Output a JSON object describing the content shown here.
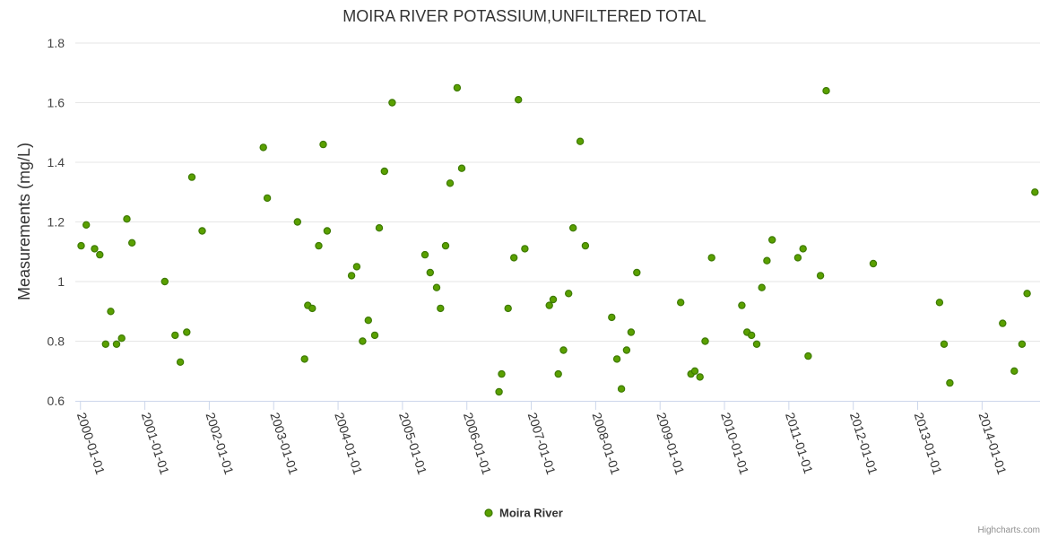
{
  "chart_data": {
    "type": "scatter",
    "title": "MOIRA RIVER POTASSIUM,UNFILTERED TOTAL",
    "ylabel": "Measurements (mg/L)",
    "xlabel": "",
    "ylim": [
      0.6,
      1.8
    ],
    "yticks": [
      "0.6",
      "0.8",
      "1",
      "1.2",
      "1.4",
      "1.6",
      "1.8"
    ],
    "xlim": [
      1999.92,
      2014.9
    ],
    "xticks": [
      {
        "label": "2000-01-01",
        "value": 2000.0
      },
      {
        "label": "2001-01-01",
        "value": 2001.0
      },
      {
        "label": "2002-01-01",
        "value": 2002.0
      },
      {
        "label": "2003-01-01",
        "value": 2003.0
      },
      {
        "label": "2004-01-01",
        "value": 2004.0
      },
      {
        "label": "2005-01-01",
        "value": 2005.0
      },
      {
        "label": "2006-01-01",
        "value": 2006.0
      },
      {
        "label": "2007-01-01",
        "value": 2007.0
      },
      {
        "label": "2008-01-01",
        "value": 2008.0
      },
      {
        "label": "2009-01-01",
        "value": 2009.0
      },
      {
        "label": "2010-01-01",
        "value": 2010.0
      },
      {
        "label": "2011-01-01",
        "value": 2011.0
      },
      {
        "label": "2012-01-01",
        "value": 2012.0
      },
      {
        "label": "2013-01-01",
        "value": 2013.0
      },
      {
        "label": "2014-01-01",
        "value": 2014.0
      }
    ],
    "grid": true,
    "legend_position": "bottom-center",
    "series": [
      {
        "name": "Moira River",
        "color": "#5aa000",
        "edge_color": "#3d7a00",
        "points": [
          [
            2000.01,
            1.12
          ],
          [
            2000.09,
            1.19
          ],
          [
            2000.22,
            1.11
          ],
          [
            2000.3,
            1.09
          ],
          [
            2000.39,
            0.79
          ],
          [
            2000.47,
            0.9
          ],
          [
            2000.56,
            0.79
          ],
          [
            2000.64,
            0.81
          ],
          [
            2000.72,
            1.21
          ],
          [
            2000.8,
            1.13
          ],
          [
            2001.31,
            1.0
          ],
          [
            2001.47,
            0.82
          ],
          [
            2001.55,
            0.73
          ],
          [
            2001.65,
            0.83
          ],
          [
            2001.73,
            1.35
          ],
          [
            2001.89,
            1.17
          ],
          [
            2002.84,
            1.45
          ],
          [
            2002.9,
            1.28
          ],
          [
            2003.37,
            1.2
          ],
          [
            2003.48,
            0.74
          ],
          [
            2003.53,
            0.92
          ],
          [
            2003.6,
            0.91
          ],
          [
            2003.7,
            1.12
          ],
          [
            2003.77,
            1.46
          ],
          [
            2003.83,
            1.17
          ],
          [
            2004.21,
            1.02
          ],
          [
            2004.29,
            1.05
          ],
          [
            2004.38,
            0.8
          ],
          [
            2004.47,
            0.87
          ],
          [
            2004.57,
            0.82
          ],
          [
            2004.64,
            1.18
          ],
          [
            2004.72,
            1.37
          ],
          [
            2004.84,
            1.6
          ],
          [
            2005.35,
            1.09
          ],
          [
            2005.43,
            1.03
          ],
          [
            2005.53,
            0.98
          ],
          [
            2005.59,
            0.91
          ],
          [
            2005.67,
            1.12
          ],
          [
            2005.74,
            1.33
          ],
          [
            2005.85,
            1.65
          ],
          [
            2005.92,
            1.38
          ],
          [
            2006.5,
            0.63
          ],
          [
            2006.54,
            0.69
          ],
          [
            2006.64,
            0.91
          ],
          [
            2006.73,
            1.08
          ],
          [
            2006.8,
            1.61
          ],
          [
            2006.9,
            1.11
          ],
          [
            2007.28,
            0.92
          ],
          [
            2007.34,
            0.94
          ],
          [
            2007.42,
            0.69
          ],
          [
            2007.5,
            0.77
          ],
          [
            2007.58,
            0.96
          ],
          [
            2007.65,
            1.18
          ],
          [
            2007.76,
            1.47
          ],
          [
            2007.84,
            1.12
          ],
          [
            2008.25,
            0.88
          ],
          [
            2008.33,
            0.74
          ],
          [
            2008.4,
            0.64
          ],
          [
            2008.48,
            0.77
          ],
          [
            2008.55,
            0.83
          ],
          [
            2008.64,
            1.03
          ],
          [
            2009.32,
            0.93
          ],
          [
            2009.48,
            0.69
          ],
          [
            2009.54,
            0.7
          ],
          [
            2009.62,
            0.68
          ],
          [
            2009.7,
            0.8
          ],
          [
            2009.8,
            1.08
          ],
          [
            2010.27,
            0.92
          ],
          [
            2010.35,
            0.83
          ],
          [
            2010.42,
            0.82
          ],
          [
            2010.5,
            0.79
          ],
          [
            2010.58,
            0.98
          ],
          [
            2010.66,
            1.07
          ],
          [
            2010.74,
            1.14
          ],
          [
            2011.14,
            1.08
          ],
          [
            2011.22,
            1.11
          ],
          [
            2011.3,
            0.75
          ],
          [
            2011.49,
            1.02
          ],
          [
            2011.58,
            1.64
          ],
          [
            2012.31,
            1.06
          ],
          [
            2013.34,
            0.93
          ],
          [
            2013.41,
            0.79
          ],
          [
            2013.5,
            0.66
          ],
          [
            2014.32,
            0.86
          ],
          [
            2014.5,
            0.7
          ],
          [
            2014.62,
            0.79
          ],
          [
            2014.7,
            0.96
          ],
          [
            2014.82,
            1.3
          ]
        ]
      }
    ]
  },
  "credit": "Highcharts.com"
}
